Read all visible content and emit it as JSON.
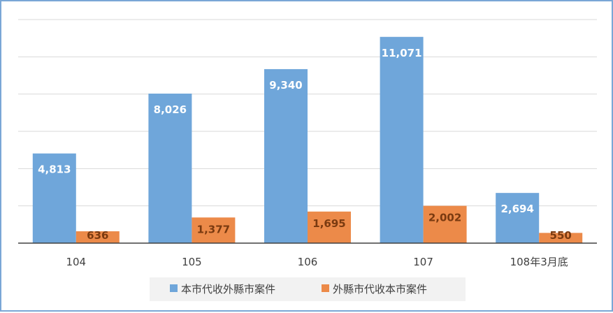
{
  "colors": {
    "series1": "#6fa6da",
    "series2": "#ec8a49",
    "series1_label": "#ffffff",
    "series2_label": "#7a3a10",
    "grid": "#d9d9d9",
    "axis": "#404040",
    "border": "#7aa7d6",
    "legend_bg": "#f2f2f2"
  },
  "chart_data": {
    "type": "bar",
    "title": "",
    "xlabel": "",
    "ylabel": "",
    "categories": [
      "104",
      "105",
      "106",
      "107",
      "108年3月底"
    ],
    "series": [
      {
        "name": "本市代收外縣市案件",
        "values": [
          4813,
          8026,
          9340,
          11071,
          2694
        ],
        "labels": [
          "4,813",
          "8,026",
          "9,340",
          "11,071",
          "2,694"
        ]
      },
      {
        "name": "外縣市代收本市案件",
        "values": [
          636,
          1377,
          1695,
          2002,
          550
        ],
        "labels": [
          "636",
          "1,377",
          "1,695",
          "2,002",
          "550"
        ]
      }
    ],
    "ylim": [
      0,
      12000
    ],
    "grid": true,
    "y_tick_labels_shown": false,
    "legend": "bottom"
  }
}
